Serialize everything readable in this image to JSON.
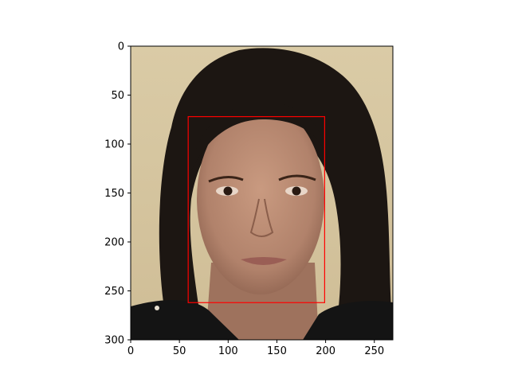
{
  "chart_data": {
    "type": "image",
    "title": "",
    "xlabel": "",
    "ylabel": "",
    "xlim": [
      0,
      269
    ],
    "ylim": [
      300,
      0
    ],
    "x_ticks": [
      0,
      50,
      100,
      150,
      200,
      250
    ],
    "y_ticks": [
      0,
      50,
      100,
      150,
      200,
      250,
      300
    ],
    "x_tick_labels": [
      "0",
      "50",
      "100",
      "150",
      "200",
      "250"
    ],
    "y_tick_labels": [
      "0",
      "50",
      "100",
      "150",
      "200",
      "250",
      "300"
    ],
    "annotations": [
      {
        "type": "rectangle",
        "label": "face",
        "x0": 59,
        "y0": 72,
        "x1": 199,
        "y1": 262,
        "color": "#ff0000"
      }
    ]
  },
  "colors": {
    "background_wall": "#d9c9a3",
    "hair": "#1c1612",
    "skin": "#b98a72",
    "skin_shade": "#9a6c58",
    "shirt": "#141414",
    "box": "#ff0000"
  }
}
